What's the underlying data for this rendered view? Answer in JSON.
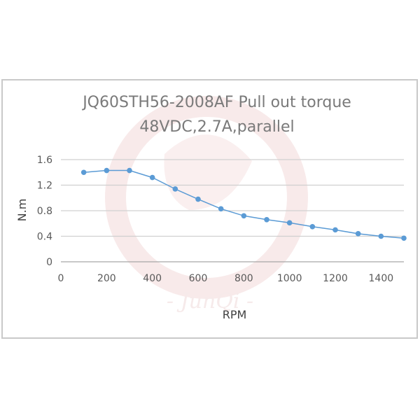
{
  "chart_data": {
    "type": "line",
    "title": "JQ60STH56-2008AF Pull out torque",
    "subtitle": "48VDC,2.7A,parallel",
    "xlabel": "RPM",
    "ylabel": "N.m",
    "xlim": [
      0,
      1500
    ],
    "ylim": [
      0,
      1.6
    ],
    "x_ticks": [
      0,
      200,
      400,
      600,
      800,
      1000,
      1200,
      1400
    ],
    "y_ticks": [
      0,
      0.4,
      0.8,
      1.2,
      1.6
    ],
    "y_tick_labels": [
      "0",
      "0.4",
      "0.8",
      "1.2",
      "1.6"
    ],
    "grid": "horizontal",
    "legend": "none",
    "series": [
      {
        "x": [
          100,
          200,
          300,
          400,
          500,
          600,
          700,
          800,
          900,
          1000,
          1100,
          1200,
          1300,
          1400,
          1500
        ],
        "y": [
          1.4,
          1.43,
          1.43,
          1.32,
          1.14,
          0.98,
          0.83,
          0.72,
          0.66,
          0.61,
          0.55,
          0.5,
          0.44,
          0.4,
          0.37
        ]
      }
    ],
    "colors": {
      "series": "#5b9bd5",
      "grid": "#d0d0d0",
      "axis": "#a6a6a6"
    }
  },
  "watermark": {
    "text": "- JunQi -"
  }
}
